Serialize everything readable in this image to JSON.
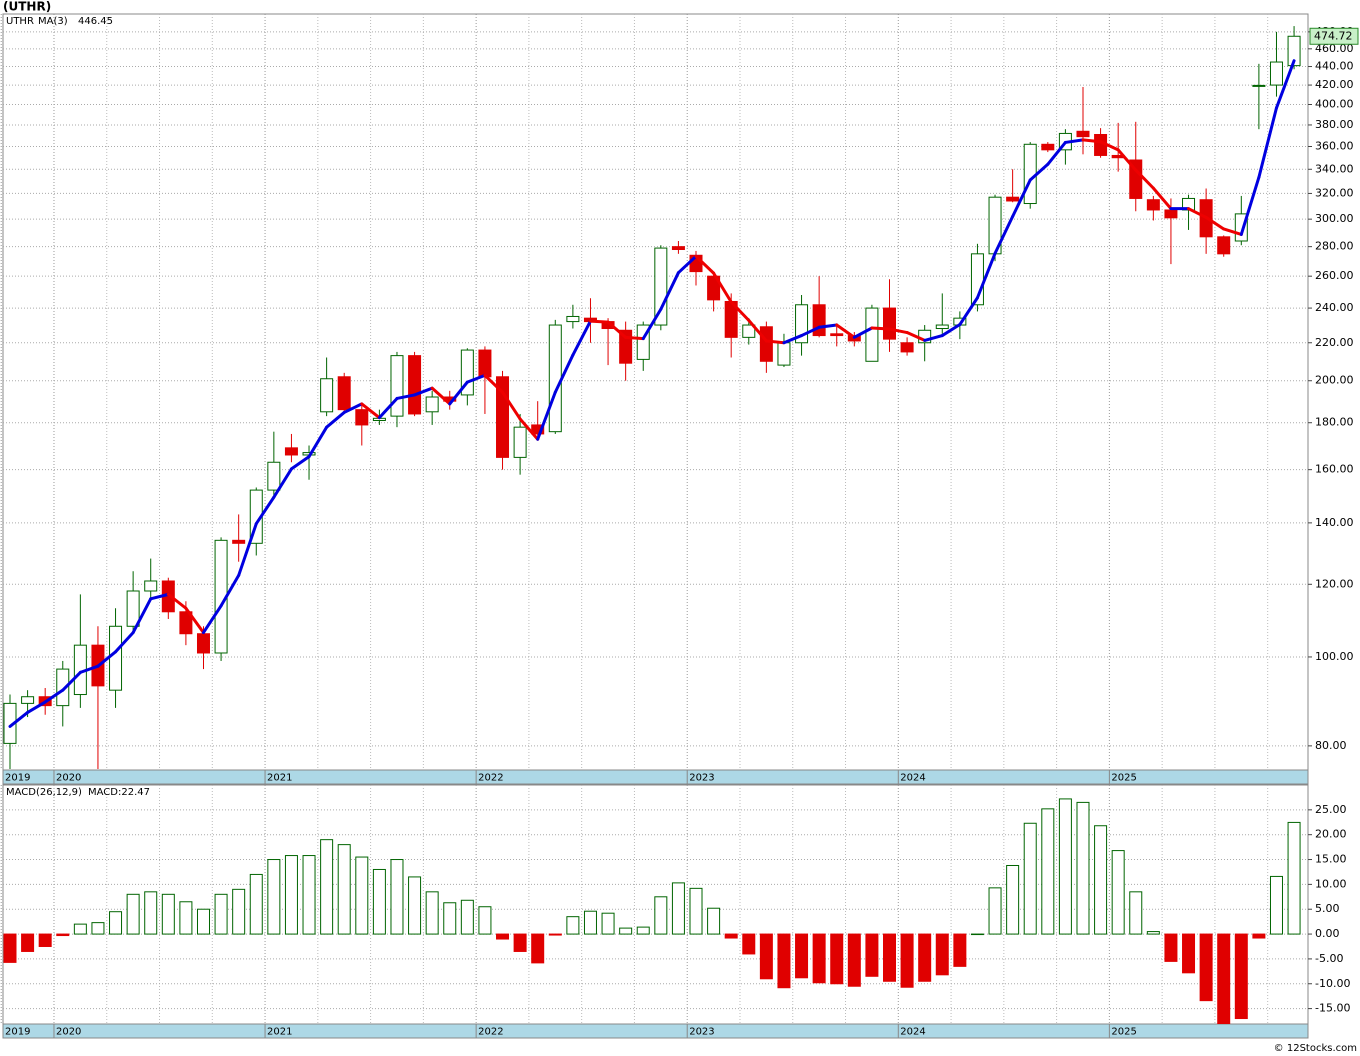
{
  "chart_data": [
    {
      "type": "candlestick",
      "title": "(UTHR)",
      "name": "UTHR",
      "log_scale": true,
      "grid": true,
      "up_color": "#006400",
      "down_color": "#e00000",
      "categories": [
        "2019",
        null,
        null,
        "2020",
        null,
        null,
        null,
        null,
        null,
        null,
        null,
        null,
        null,
        null,
        null,
        "2021",
        null,
        null,
        null,
        null,
        null,
        null,
        null,
        null,
        null,
        null,
        null,
        "2022",
        null,
        null,
        null,
        null,
        null,
        null,
        null,
        null,
        null,
        null,
        null,
        "2023",
        null,
        null,
        null,
        null,
        null,
        null,
        null,
        null,
        null,
        null,
        null,
        "2024",
        null,
        null,
        null,
        null,
        null,
        null,
        null,
        null,
        null,
        null,
        null,
        "2025",
        null,
        null,
        null,
        null,
        null,
        null,
        null,
        null,
        null,
        null
      ],
      "open": [
        80.5,
        89,
        90.5,
        88.5,
        91,
        103,
        92,
        108,
        118,
        121,
        112,
        106,
        101,
        134,
        133,
        152,
        169,
        166,
        185,
        202,
        186,
        181,
        183,
        213,
        185,
        192,
        193,
        216,
        202,
        165,
        179,
        176,
        232,
        234,
        232,
        227,
        211,
        230,
        280,
        274,
        260,
        244,
        223,
        229,
        208,
        220,
        242,
        225,
        224,
        210,
        240,
        220,
        220,
        228,
        230,
        242,
        275,
        317,
        312,
        362,
        357,
        374,
        371,
        352,
        348,
        315,
        307,
        307,
        315,
        287,
        284,
        419,
        420,
        441
      ],
      "high": [
        91,
        92,
        92.5,
        99,
        117,
        108,
        113,
        124,
        128,
        122,
        115,
        108,
        135,
        143,
        153,
        176,
        175,
        170,
        212,
        204,
        188,
        186,
        215,
        215,
        195,
        195,
        217,
        218,
        205,
        184,
        190,
        233,
        242,
        246,
        234,
        232,
        232,
        281,
        284,
        277,
        261,
        249,
        234,
        232,
        225,
        248,
        260,
        231,
        226,
        242,
        258,
        223,
        230,
        249,
        238,
        282,
        319,
        340,
        364,
        364,
        376,
        418,
        377,
        382,
        383,
        318,
        316,
        319,
        324,
        288,
        318,
        443,
        480,
        487
      ],
      "low": [
        75.5,
        86,
        86.5,
        84,
        88,
        75.5,
        88,
        106,
        116,
        110,
        103,
        97,
        99,
        127,
        129,
        150,
        163,
        156,
        183,
        185,
        170,
        179,
        178,
        183,
        179,
        186,
        188,
        184,
        160,
        158,
        174,
        175,
        228,
        220,
        208,
        200,
        205,
        227,
        275,
        254,
        238,
        212,
        219,
        204,
        207,
        213,
        223,
        218,
        218,
        210,
        215,
        213,
        210,
        225,
        222,
        238,
        270,
        313,
        308,
        355,
        344,
        353,
        350,
        338,
        306,
        299,
        268,
        292,
        275,
        273,
        281,
        376,
        408,
        437
      ],
      "close": [
        89,
        90.5,
        88.5,
        97,
        103,
        93,
        108,
        118,
        121,
        112,
        106,
        101,
        134,
        133,
        152,
        163,
        166,
        167,
        201,
        186,
        179,
        182,
        213,
        184,
        192,
        190,
        216,
        202,
        165,
        178,
        175,
        230,
        235,
        232,
        228,
        209,
        230,
        279,
        278,
        263,
        245,
        223,
        230,
        210,
        220,
        242,
        224,
        224,
        221,
        240,
        222,
        215,
        227,
        230,
        234,
        275,
        317,
        314,
        362,
        357,
        372,
        369,
        352,
        350,
        316,
        307,
        301,
        316,
        287,
        275,
        304,
        419.65,
        445,
        474.72
      ],
      "ma": {
        "name": "MA(3)",
        "up_color": "#0000e0",
        "down_color": "#ee0000",
        "values": [
          84,
          87,
          89.3,
          92,
          96.2,
          97.7,
          101.3,
          106.3,
          115.7,
          117,
          113,
          106.3,
          113.7,
          122.7,
          139.7,
          149.3,
          160.3,
          165.3,
          178,
          184.7,
          188.7,
          182.3,
          191.3,
          193,
          196.3,
          188.7,
          199.3,
          202.7,
          194.3,
          181.7,
          172.7,
          194.3,
          213.3,
          232.3,
          231.7,
          223,
          222.3,
          239.3,
          262.3,
          273.3,
          262,
          243.7,
          232.7,
          221,
          220,
          224,
          228.7,
          230,
          223,
          228.3,
          227.7,
          225.7,
          221.3,
          224,
          230.3,
          246.3,
          275.3,
          302,
          331,
          344.3,
          363.7,
          366,
          364.3,
          357,
          339.3,
          324.3,
          308,
          308,
          301.3,
          292.7,
          288.7,
          333.2,
          396.6,
          446.45
        ]
      },
      "ylim": [
        75.3,
        502
      ],
      "yticks": [
        {
          "value": 80,
          "label": "80.00"
        },
        {
          "value": 100,
          "label": "100.00"
        },
        {
          "value": 120,
          "label": "120.00"
        },
        {
          "value": 140,
          "label": "140.00"
        },
        {
          "value": 160,
          "label": "160.00"
        },
        {
          "value": 180,
          "label": "180.00"
        },
        {
          "value": 200,
          "label": "200.00"
        },
        {
          "value": 220,
          "label": "220.00"
        },
        {
          "value": 240,
          "label": "240.00"
        },
        {
          "value": 260,
          "label": "260.00"
        },
        {
          "value": 280,
          "label": "280.00"
        },
        {
          "value": 300,
          "label": "300.00"
        },
        {
          "value": 320,
          "label": "320.00"
        },
        {
          "value": 340,
          "label": "340.00"
        },
        {
          "value": 360,
          "label": "360.00"
        },
        {
          "value": 380,
          "label": "380.00"
        },
        {
          "value": 400,
          "label": "400.00"
        },
        {
          "value": 420,
          "label": "420.00"
        },
        {
          "value": 440,
          "label": "440.00"
        },
        {
          "value": 460,
          "label": "460.00"
        },
        {
          "value": 480,
          "label": "480.00"
        }
      ]
    },
    {
      "type": "bar",
      "title": "MACD(26,12,9)",
      "legend": "MACD:22.47",
      "grid": true,
      "up_color": "#006400",
      "down_color": "#e00000",
      "categories": [
        "2019",
        null,
        null,
        "2020",
        null,
        null,
        null,
        null,
        null,
        null,
        null,
        null,
        null,
        null,
        null,
        "2021",
        null,
        null,
        null,
        null,
        null,
        null,
        null,
        null,
        null,
        null,
        null,
        "2022",
        null,
        null,
        null,
        null,
        null,
        null,
        null,
        null,
        null,
        null,
        null,
        "2023",
        null,
        null,
        null,
        null,
        null,
        null,
        null,
        null,
        null,
        null,
        null,
        "2024",
        null,
        null,
        null,
        null,
        null,
        null,
        null,
        null,
        null,
        null,
        null,
        "2025",
        null,
        null,
        null,
        null,
        null,
        null,
        null,
        null,
        null,
        null
      ],
      "values": [
        -5.7,
        -3.5,
        -2.5,
        -0.3,
        2,
        2.3,
        4.5,
        8,
        8.5,
        8,
        6.5,
        5,
        8,
        9,
        12,
        15,
        15.8,
        15.8,
        19,
        18,
        15.5,
        13,
        15,
        11.5,
        8.5,
        6.3,
        6.8,
        5.5,
        -1,
        -3.5,
        -5.8,
        -0.2,
        3.5,
        4.6,
        4.2,
        1.2,
        1.4,
        7.5,
        10.3,
        9.2,
        5.2,
        -0.8,
        -4,
        -9,
        -10.8,
        -8.8,
        -9.8,
        -10,
        -10.5,
        -8.5,
        -9.5,
        -10.7,
        -9.5,
        -8.2,
        -6.5,
        0,
        9.3,
        13.8,
        22.3,
        25.2,
        27.2,
        26.5,
        21.8,
        16.8,
        8.5,
        0.5,
        -5.5,
        -7.8,
        -13.4,
        -18,
        -17,
        -0.8,
        11.6,
        22.47
      ],
      "ylim": [
        -18.1,
        30
      ],
      "yticks": [
        {
          "value": 25,
          "label": "25.00"
        },
        {
          "value": 20,
          "label": "20.00"
        },
        {
          "value": 15,
          "label": "15.00"
        },
        {
          "value": 10,
          "label": "10.00"
        },
        {
          "value": 5,
          "label": "5.00"
        },
        {
          "value": 0,
          "label": "0.00"
        },
        {
          "value": -5,
          "label": "-5.00"
        },
        {
          "value": -10,
          "label": "-10.00"
        },
        {
          "value": -15,
          "label": "-15.00"
        }
      ]
    }
  ],
  "footer": "© 12Stocks.com"
}
